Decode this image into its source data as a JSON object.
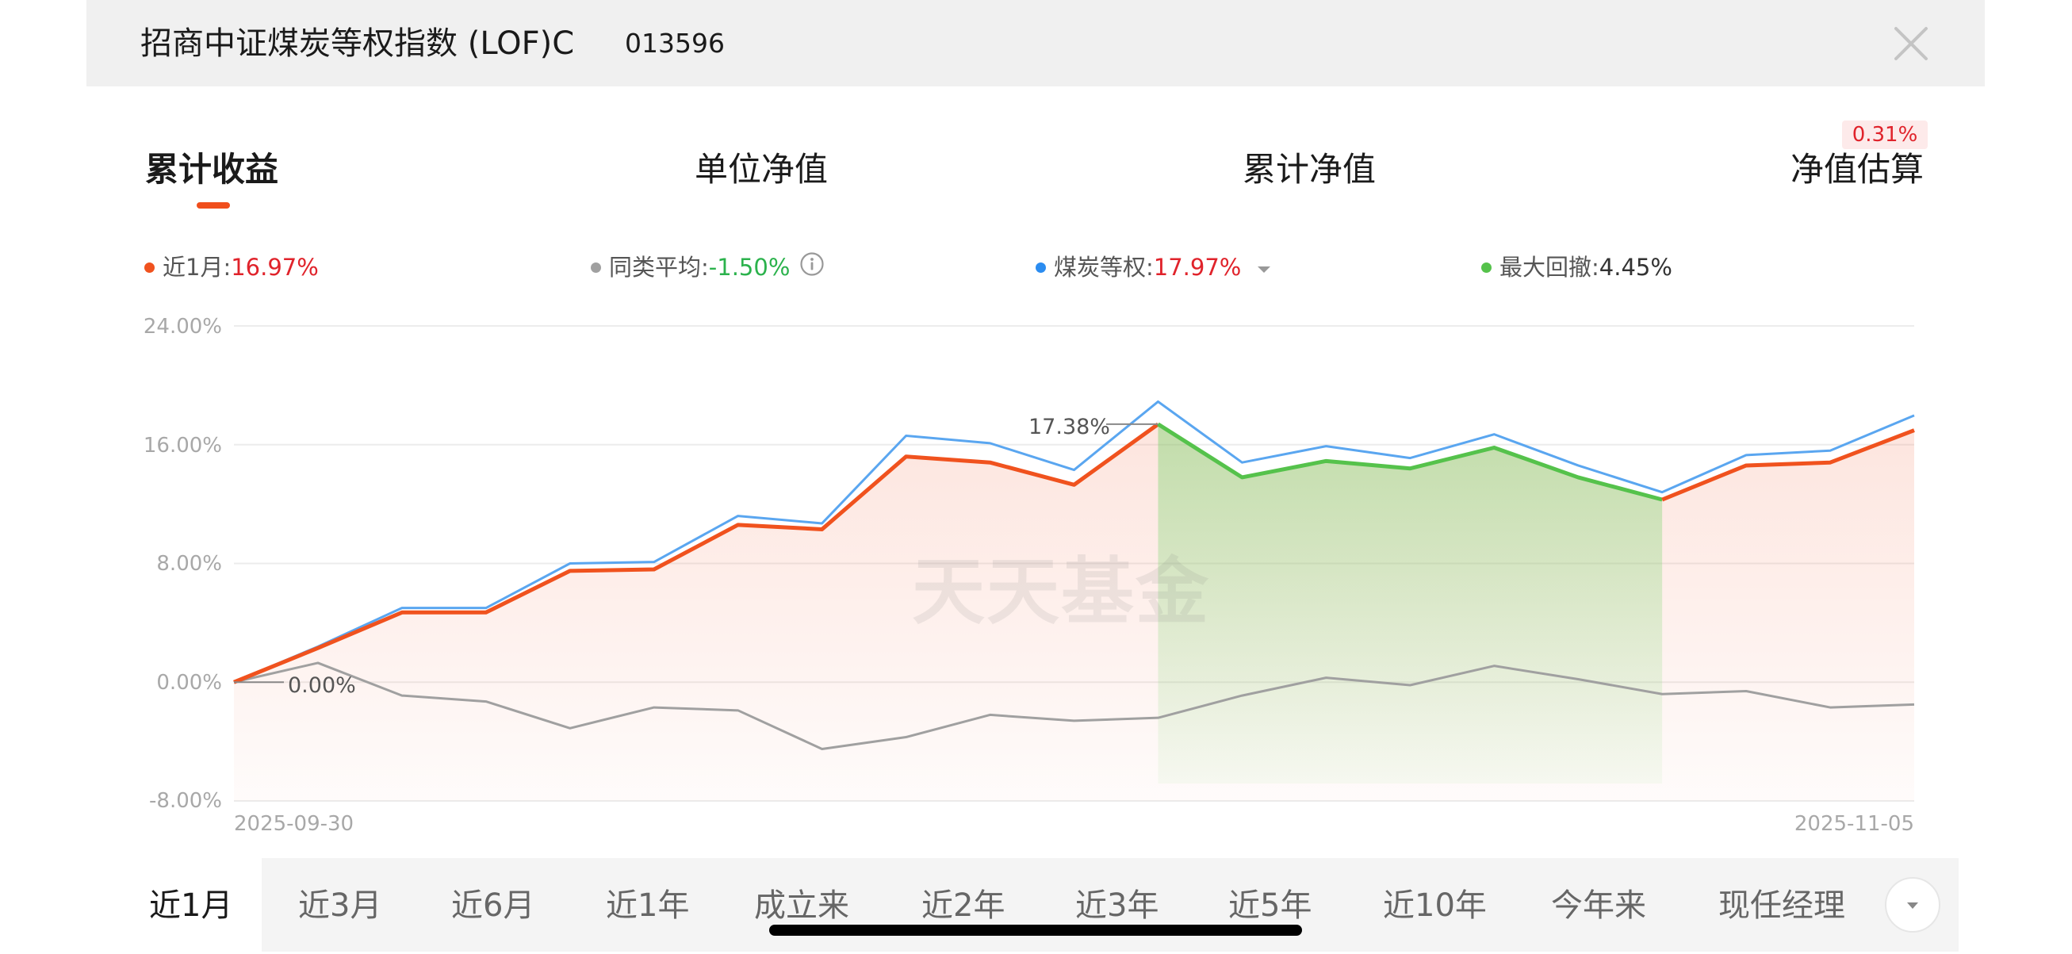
{
  "header": {
    "title": "招商中证煤炭等权指数 (LOF)C",
    "code": "013596"
  },
  "tabs": [
    {
      "label": "累计收益",
      "active": true
    },
    {
      "label": "单位净值",
      "active": false
    },
    {
      "label": "累计净值",
      "active": false
    },
    {
      "label": "净值估算",
      "active": false
    }
  ],
  "estimate_badge": "0.31%",
  "legend": [
    {
      "name": "近1月:",
      "value": "16.97%",
      "dot_color": "#f0521e",
      "value_color": "#e0232b"
    },
    {
      "name": "同类平均:",
      "value": "-1.50%",
      "dot_color": "#a0a0a0",
      "value_color": "#2bb24c"
    },
    {
      "name": "煤炭等权:",
      "value": "17.97%",
      "dot_color": "#2b8cf0",
      "value_color": "#e0232b"
    },
    {
      "name": "最大回撤:",
      "value": "4.45%",
      "dot_color": "#55c24b",
      "value_color": "#333333"
    }
  ],
  "watermark": "天天基金",
  "chart_data": {
    "type": "line",
    "x_start": "2025-09-30",
    "x_end": "2025-11-05",
    "xlabel": "",
    "ylabel": "",
    "yticks": [
      "24.00%",
      "16.00%",
      "8.00%",
      "0.00%",
      "-8.00%"
    ],
    "ylim": [
      -8,
      24
    ],
    "grid": true,
    "series": [
      {
        "name": "近1月",
        "color": "#f0521e",
        "values": [
          0,
          2.3,
          4.7,
          4.7,
          7.5,
          7.6,
          10.6,
          10.3,
          15.2,
          14.8,
          13.3,
          17.38,
          13.8,
          14.9,
          14.4,
          15.8,
          13.8,
          12.3,
          14.6,
          14.8,
          16.97
        ]
      },
      {
        "name": "同类平均",
        "color": "#a0a0a0",
        "values": [
          0,
          1.3,
          -0.9,
          -1.3,
          -3.1,
          -1.7,
          -1.9,
          -4.5,
          -3.7,
          -2.2,
          -2.6,
          -2.4,
          -0.9,
          0.3,
          -0.2,
          1.1,
          0.2,
          -0.8,
          -0.6,
          -1.7,
          -1.5
        ]
      },
      {
        "name": "煤炭等权",
        "color": "#5aa6f0",
        "values": [
          0,
          2.4,
          5.0,
          5.0,
          8.0,
          8.1,
          11.2,
          10.7,
          16.6,
          16.1,
          14.3,
          18.9,
          14.8,
          15.9,
          15.1,
          16.7,
          14.6,
          12.8,
          15.3,
          15.6,
          17.97
        ]
      }
    ],
    "drawdown": {
      "start_index": 11,
      "end_index": 17,
      "color": "#55c24b"
    },
    "annotations": [
      "17.38%",
      "0.00%"
    ]
  },
  "periods": [
    {
      "label": "近1月",
      "active": true
    },
    {
      "label": "近3月",
      "active": false
    },
    {
      "label": "近6月",
      "active": false
    },
    {
      "label": "近1年",
      "active": false
    },
    {
      "label": "成立来",
      "active": false
    },
    {
      "label": "近2年",
      "active": false
    },
    {
      "label": "近3年",
      "active": false
    },
    {
      "label": "近5年",
      "active": false
    },
    {
      "label": "近10年",
      "active": false
    },
    {
      "label": "今年来",
      "active": false
    },
    {
      "label": "现任经理",
      "active": false
    }
  ]
}
